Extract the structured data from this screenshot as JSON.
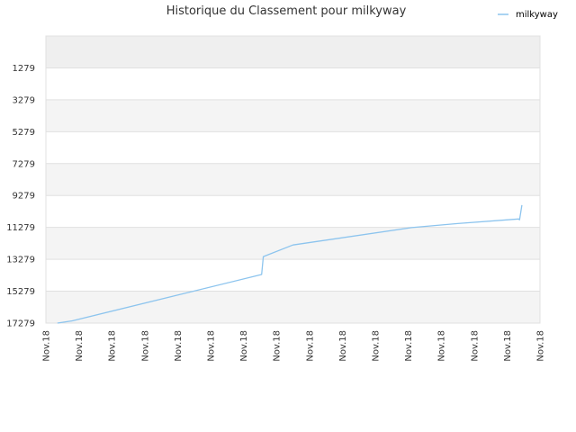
{
  "colors": {
    "series": "#8cc4ee",
    "band_dark": "#efefef",
    "band_light": "#f4f4f4",
    "band_white": "#ffffff",
    "grid": "#e0e0e0"
  },
  "chart_data": {
    "type": "line",
    "title": "Historique du Classement pour milkyway",
    "xlabel": "",
    "ylabel": "",
    "y_inverted": true,
    "ylim": [
      -721,
      17279
    ],
    "yticks": [
      1279,
      3279,
      5279,
      7279,
      9279,
      11279,
      13279,
      15279,
      17279
    ],
    "xlim": [
      0,
      15
    ],
    "xtick_labels": [
      "Nov.18",
      "Nov.18",
      "Nov.18",
      "Nov.18",
      "Nov.18",
      "Nov.18",
      "Nov.18",
      "Nov.18",
      "Nov.18",
      "Nov.18",
      "Nov.18",
      "Nov.18",
      "Nov.18",
      "Nov.18",
      "Nov.18",
      "Nov.18"
    ],
    "grid": true,
    "legend_position": "top-right",
    "series": [
      {
        "name": "milkyway",
        "x": [
          0.35,
          0.8,
          6.55,
          6.6,
          7.5,
          11.1,
          12.5,
          14.35,
          14.38,
          14.45
        ],
        "y": [
          17279,
          17140,
          14230,
          13110,
          12380,
          11290,
          11040,
          10750,
          10800,
          9880
        ]
      }
    ]
  }
}
